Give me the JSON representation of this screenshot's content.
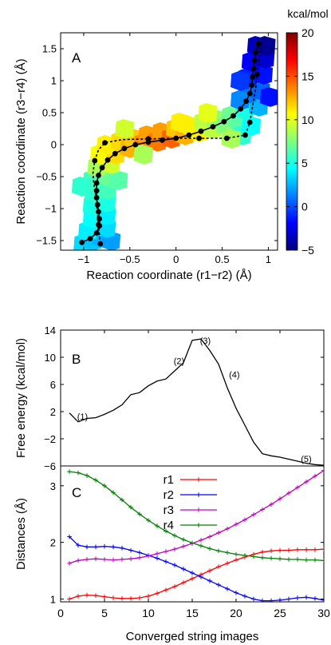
{
  "chart_data": [
    {
      "panel": "A",
      "type": "heatmap",
      "xlabel": "Reaction coordinate (r1−r2) (Å)",
      "ylabel": "Reaction coordinate (r3−r4) (Å)",
      "xlim": [
        -1.25,
        1.1
      ],
      "ylim": [
        -1.65,
        1.75
      ],
      "xticks": [
        -1,
        -0.5,
        0,
        0.5,
        1
      ],
      "xtick_labels": [
        "−1",
        "−0.5",
        "0",
        "0.5",
        "1"
      ],
      "yticks": [
        -1.5,
        -1,
        -0.5,
        0,
        0.5,
        1,
        1.5
      ],
      "ytick_labels": [
        "−1.5",
        "−1",
        "−0.5",
        "0",
        "0.5",
        "1",
        "1.5"
      ],
      "colorbar": {
        "title": "kcal/mol",
        "range": [
          -5,
          20
        ],
        "ticks": [
          20,
          15,
          10,
          5,
          0,
          -5
        ],
        "tick_labels": [
          "20",
          "15",
          "10",
          "5",
          "0",
          "−5"
        ],
        "colors": [
          "#00007f",
          "#0000ff",
          "#007fff",
          "#00ffff",
          "#7fff7f",
          "#ffff00",
          "#ff7f00",
          "#ff0000",
          "#7f0000"
        ]
      },
      "surface": [
        {
          "x": -1.0,
          "y": -1.55,
          "v": 3.5
        },
        {
          "x": -0.9,
          "y": -1.5,
          "v": 3.0
        },
        {
          "x": -0.8,
          "y": -1.45,
          "v": 2.5
        },
        {
          "x": -0.7,
          "y": -1.5,
          "v": 2.0
        },
        {
          "x": -0.95,
          "y": -1.35,
          "v": 4.0
        },
        {
          "x": -0.75,
          "y": -1.3,
          "v": 3.5
        },
        {
          "x": -0.9,
          "y": -1.15,
          "v": 4.5
        },
        {
          "x": -0.75,
          "y": -1.1,
          "v": 4.0
        },
        {
          "x": -0.9,
          "y": -0.95,
          "v": 5.0
        },
        {
          "x": -0.75,
          "y": -0.9,
          "v": 5.0
        },
        {
          "x": -0.88,
          "y": -0.75,
          "v": 5.5
        },
        {
          "x": -0.74,
          "y": -0.7,
          "v": 6.0
        },
        {
          "x": -0.9,
          "y": -0.55,
          "v": 6.0
        },
        {
          "x": -0.72,
          "y": -0.5,
          "v": 7.0
        },
        {
          "x": -0.62,
          "y": -0.55,
          "v": 6.5
        },
        {
          "x": -0.85,
          "y": -0.35,
          "v": 8.5
        },
        {
          "x": -0.7,
          "y": -0.3,
          "v": 9.5
        },
        {
          "x": -0.82,
          "y": -0.15,
          "v": 10.5
        },
        {
          "x": -0.65,
          "y": -0.15,
          "v": 11.5
        },
        {
          "x": -0.75,
          "y": 0.0,
          "v": 11.0
        },
        {
          "x": -0.6,
          "y": 0.05,
          "v": 11.5
        },
        {
          "x": -0.5,
          "y": -0.05,
          "v": 12.5
        },
        {
          "x": -0.45,
          "y": 0.1,
          "v": 12.0
        },
        {
          "x": -0.35,
          "y": 0.02,
          "v": 13.5
        },
        {
          "x": -0.3,
          "y": 0.15,
          "v": 13.0
        },
        {
          "x": -0.2,
          "y": 0.05,
          "v": 14.0
        },
        {
          "x": -0.15,
          "y": 0.2,
          "v": 13.0
        },
        {
          "x": -0.05,
          "y": 0.1,
          "v": 14.5
        },
        {
          "x": 0.0,
          "y": 0.25,
          "v": 12.0
        },
        {
          "x": 0.1,
          "y": 0.15,
          "v": 12.5
        },
        {
          "x": 0.15,
          "y": 0.3,
          "v": 11.0
        },
        {
          "x": 0.25,
          "y": 0.2,
          "v": 11.0
        },
        {
          "x": 0.3,
          "y": 0.35,
          "v": 9.0
        },
        {
          "x": 0.4,
          "y": 0.25,
          "v": 9.0
        },
        {
          "x": 0.45,
          "y": 0.4,
          "v": 8.0
        },
        {
          "x": 0.55,
          "y": 0.3,
          "v": 7.5
        },
        {
          "x": 0.6,
          "y": 0.45,
          "v": 7.0
        },
        {
          "x": 0.7,
          "y": 0.35,
          "v": 6.5
        },
        {
          "x": 0.72,
          "y": 0.15,
          "v": 5.5
        },
        {
          "x": 0.6,
          "y": 0.1,
          "v": 8.5
        },
        {
          "x": 0.82,
          "y": 0.3,
          "v": 4.5
        },
        {
          "x": 0.75,
          "y": 0.55,
          "v": 5.0
        },
        {
          "x": 0.9,
          "y": 0.6,
          "v": 2.5
        },
        {
          "x": 0.78,
          "y": 0.8,
          "v": 1.0
        },
        {
          "x": 0.92,
          "y": 0.85,
          "v": 0.5
        },
        {
          "x": 0.78,
          "y": 1.05,
          "v": -1.0
        },
        {
          "x": 0.95,
          "y": 1.1,
          "v": -1.5
        },
        {
          "x": 0.82,
          "y": 1.3,
          "v": -2.0
        },
        {
          "x": 0.97,
          "y": 1.35,
          "v": -3.0
        },
        {
          "x": 0.88,
          "y": 1.55,
          "v": -3.5
        },
        {
          "x": 0.98,
          "y": 1.55,
          "v": -4.5
        },
        {
          "x": 0.7,
          "y": 1.0,
          "v": -0.5
        },
        {
          "x": 0.7,
          "y": 0.7,
          "v": 1.5
        },
        {
          "x": 1.02,
          "y": 0.75,
          "v": -1.5
        },
        {
          "x": -1.02,
          "y": -0.65,
          "v": 5.5
        },
        {
          "x": -0.55,
          "y": 0.25,
          "v": 9.5
        },
        {
          "x": -0.35,
          "y": -0.15,
          "v": 8.5
        },
        {
          "x": 0.35,
          "y": 0.5,
          "v": 10.0
        },
        {
          "x": 0.05,
          "y": 0.35,
          "v": 11.0
        }
      ],
      "solid_path": [
        [
          -1.02,
          -1.53
        ],
        [
          -0.93,
          -1.47
        ],
        [
          -0.86,
          -1.38
        ],
        [
          -0.83,
          -1.27
        ],
        [
          -0.83,
          -1.16
        ],
        [
          -0.84,
          -1.05
        ],
        [
          -0.85,
          -0.94
        ],
        [
          -0.86,
          -0.83
        ],
        [
          -0.86,
          -0.72
        ],
        [
          -0.86,
          -0.6
        ],
        [
          -0.84,
          -0.48
        ],
        [
          -0.8,
          -0.36
        ],
        [
          -0.74,
          -0.24
        ],
        [
          -0.66,
          -0.14
        ],
        [
          -0.56,
          -0.06
        ],
        [
          -0.44,
          0.0
        ],
        [
          -0.3,
          0.04
        ],
        [
          -0.15,
          0.07
        ],
        [
          0.0,
          0.1
        ],
        [
          0.14,
          0.15
        ],
        [
          0.27,
          0.21
        ],
        [
          0.4,
          0.28
        ],
        [
          0.52,
          0.36
        ],
        [
          0.62,
          0.45
        ],
        [
          0.7,
          0.56
        ],
        [
          0.76,
          0.68
        ],
        [
          0.8,
          0.8
        ],
        [
          0.82,
          0.93
        ],
        [
          0.83,
          1.06
        ],
        [
          0.84,
          1.19
        ],
        [
          0.85,
          1.32
        ],
        [
          0.86,
          1.44
        ],
        [
          0.89,
          1.58
        ]
      ],
      "dashed_path": [
        [
          -0.82,
          -1.55
        ],
        [
          -0.83,
          -1.4
        ],
        [
          -0.84,
          -1.25
        ],
        [
          -0.85,
          -1.1
        ],
        [
          -0.86,
          -0.95
        ],
        [
          -0.87,
          -0.8
        ],
        [
          -0.89,
          -0.62
        ],
        [
          -0.9,
          -0.45
        ],
        [
          -0.88,
          -0.25
        ],
        [
          -0.84,
          -0.08
        ],
        [
          -0.77,
          0.03
        ],
        [
          -0.58,
          0.08
        ],
        [
          -0.3,
          0.09
        ],
        [
          0.0,
          0.1
        ],
        [
          0.25,
          0.1
        ],
        [
          0.55,
          0.1
        ],
        [
          0.75,
          0.15
        ],
        [
          0.8,
          0.35
        ],
        [
          0.83,
          0.6
        ],
        [
          0.86,
          0.85
        ],
        [
          0.88,
          1.1
        ],
        [
          0.9,
          1.35
        ],
        [
          0.93,
          1.6
        ]
      ],
      "dashed_markers": [
        [
          -0.82,
          -1.55
        ],
        [
          -0.84,
          -1.25
        ],
        [
          -0.88,
          -0.25
        ],
        [
          -0.77,
          0.03
        ],
        [
          -0.3,
          0.09
        ],
        [
          0.25,
          0.1
        ],
        [
          0.55,
          0.1
        ],
        [
          0.75,
          0.15
        ],
        [
          0.8,
          0.35
        ],
        [
          0.88,
          1.1
        ]
      ]
    },
    {
      "panel": "B",
      "type": "line",
      "ylabel": "Free energy (kcal/mol)",
      "xlim": [
        0,
        30
      ],
      "ylim": [
        -6,
        14
      ],
      "yticks": [
        -6,
        -2,
        2,
        6,
        10,
        14
      ],
      "ytick_labels": [
        "−6",
        "−2",
        "2",
        "6",
        "10",
        "14"
      ],
      "x": [
        1,
        2,
        3,
        4,
        5,
        6,
        7,
        8,
        9,
        10,
        11,
        12,
        13,
        14,
        15,
        16,
        17,
        18,
        19,
        20,
        21,
        22,
        23,
        24,
        25,
        26,
        27,
        28,
        29,
        30
      ],
      "values": [
        1.8,
        0.5,
        1.0,
        1.1,
        1.6,
        2.2,
        3.0,
        4.5,
        4.8,
        5.8,
        6.5,
        6.8,
        8.0,
        9.2,
        12.5,
        12.7,
        11.0,
        9.0,
        5.5,
        2.5,
        0.0,
        -2.5,
        -4.2,
        -4.5,
        -4.7,
        -5.0,
        -5.3,
        -5.6,
        -5.8,
        -5.9
      ],
      "annotations": [
        {
          "text": "(1)",
          "x": 2.5,
          "y": 0.8
        },
        {
          "text": "(2)",
          "x": 13.5,
          "y": 9.0
        },
        {
          "text": "(3)",
          "x": 16.5,
          "y": 12.0
        },
        {
          "text": "(4)",
          "x": 19.8,
          "y": 7.0
        },
        {
          "text": "(5)",
          "x": 28.0,
          "y": -5.4
        }
      ]
    },
    {
      "panel": "C",
      "type": "line",
      "xlabel": "Converged string images",
      "ylabel": "Distances (Å)",
      "xlim": [
        0,
        30
      ],
      "ylim": [
        0.95,
        3.35
      ],
      "xticks": [
        0,
        5,
        10,
        15,
        20,
        25,
        30
      ],
      "xtick_labels": [
        "0",
        "5",
        "10",
        "15",
        "20",
        "25",
        "30"
      ],
      "yticks": [
        1,
        2,
        3
      ],
      "ytick_labels": [
        "1",
        "2",
        "3"
      ],
      "legend_location": "top-center",
      "x": [
        1,
        2,
        3,
        4,
        5,
        6,
        7,
        8,
        9,
        10,
        11,
        12,
        13,
        14,
        15,
        16,
        17,
        18,
        19,
        20,
        21,
        22,
        23,
        24,
        25,
        26,
        27,
        28,
        29,
        30
      ],
      "series": [
        {
          "name": "r1",
          "color": "#ff0000",
          "values": [
            1.0,
            1.05,
            1.07,
            1.06,
            1.04,
            1.02,
            1.01,
            1.01,
            1.02,
            1.05,
            1.1,
            1.16,
            1.22,
            1.29,
            1.36,
            1.43,
            1.5,
            1.57,
            1.63,
            1.69,
            1.74,
            1.79,
            1.83,
            1.85,
            1.86,
            1.86,
            1.87,
            1.87,
            1.87,
            1.88
          ]
        },
        {
          "name": "r2",
          "color": "#0000ff",
          "values": [
            2.1,
            1.95,
            1.92,
            1.92,
            1.93,
            1.92,
            1.9,
            1.86,
            1.82,
            1.77,
            1.72,
            1.66,
            1.6,
            1.53,
            1.46,
            1.39,
            1.32,
            1.25,
            1.18,
            1.11,
            1.05,
            1.0,
            0.97,
            0.97,
            0.98,
            1.0,
            1.02,
            1.03,
            1.01,
            0.98
          ]
        },
        {
          "name": "r3",
          "color": "#c000c0",
          "values": [
            1.63,
            1.68,
            1.7,
            1.71,
            1.7,
            1.69,
            1.7,
            1.71,
            1.73,
            1.76,
            1.8,
            1.84,
            1.88,
            1.93,
            1.98,
            2.04,
            2.1,
            2.17,
            2.24,
            2.32,
            2.4,
            2.49,
            2.58,
            2.67,
            2.77,
            2.87,
            2.97,
            3.07,
            3.17,
            3.27
          ]
        },
        {
          "name": "r4",
          "color": "#008000",
          "values": [
            3.25,
            3.23,
            3.18,
            3.1,
            3.0,
            2.88,
            2.75,
            2.62,
            2.5,
            2.39,
            2.29,
            2.2,
            2.12,
            2.05,
            1.99,
            1.94,
            1.89,
            1.85,
            1.82,
            1.79,
            1.77,
            1.75,
            1.73,
            1.72,
            1.71,
            1.7,
            1.7,
            1.69,
            1.69,
            1.68
          ]
        }
      ]
    }
  ]
}
